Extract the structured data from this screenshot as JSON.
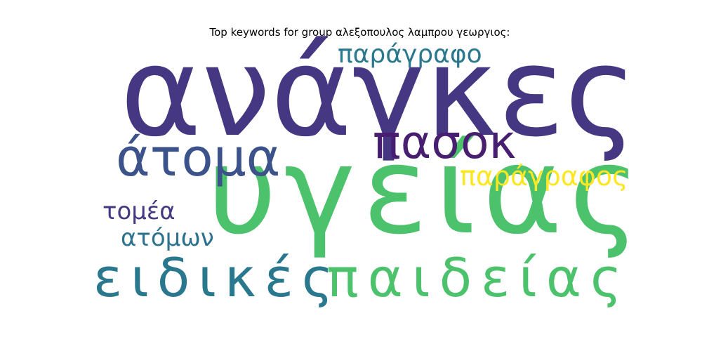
{
  "title": "Top keywords for group αλεξοπουλος λαμπρου γεωργιος:",
  "words": [
    {
      "text": "ανάγκες",
      "color": "#453781"
    },
    {
      "text": "υγείας",
      "color": "#4cc26c"
    },
    {
      "text": "παιδείας",
      "color": "#4cc26c"
    },
    {
      "text": "ειδικές",
      "color": "#2a788e"
    },
    {
      "text": "άτομα",
      "color": "#3b528b"
    },
    {
      "text": "πασοκ",
      "color": "#481f70"
    },
    {
      "text": "παράγραφο",
      "color": "#2a788e"
    },
    {
      "text": "παράγραφος",
      "color": "#fde725"
    },
    {
      "text": "τομέα",
      "color": "#443983"
    },
    {
      "text": "ατόμων",
      "color": "#2c728e"
    }
  ]
}
